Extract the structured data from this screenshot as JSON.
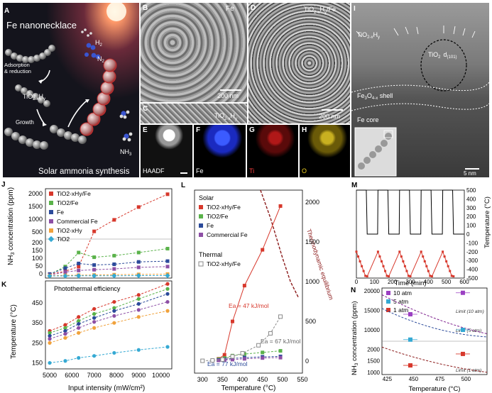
{
  "top": {
    "A": {
      "panel": "A",
      "title": "Fe nanonecklace",
      "adsorption": "Adsorption",
      "reduction": "& reduction",
      "tio2": "TiO",
      "tio2_sub": "2-x",
      "tio2_h": "H",
      "tio2_y": "y",
      "growth": "Growth",
      "h2": "H",
      "h2_sub": "2",
      "n2": "N",
      "n2_sub": "2",
      "nh3": "NH",
      "nh3_sub": "3",
      "footer": "Solar ammonia synthesis"
    },
    "B": {
      "panel": "B",
      "tag": "Fe",
      "scale": "200 nm"
    },
    "C": {
      "panel": "C",
      "tag_pre": "TiO",
      "tag_sub": "2-x",
      "tag_h": "H",
      "tag_y": "y"
    },
    "D": {
      "panel": "D",
      "tag": "TiO2-xHy/Fe",
      "tag_pre": "TiO",
      "tag_sub": "2-x",
      "tag_h": "H",
      "tag_y": "y",
      "tag_fe": "/Fe",
      "scale": "200 nm"
    },
    "E": {
      "panel": "E",
      "tag": "HAADF"
    },
    "F": {
      "panel": "F",
      "tag": "Fe"
    },
    "G": {
      "panel": "G",
      "tag": "Ti"
    },
    "H": {
      "panel": "H",
      "tag": "O"
    },
    "I": {
      "panel": "I",
      "tio2": "TiO",
      "tio2_sub": "2-x",
      "tio2_h": "H",
      "tio2_y": "y",
      "tio2_inner": "TiO",
      "tio2_inner_sub": "2",
      "d": "d",
      "d_sub": "(101)",
      "shell": "Fe",
      "shell_sub": "3",
      "shell_o": "O",
      "shell_o_sub": "4-x",
      "shell_word": " shell",
      "core": "Fe   core",
      "scale": "5 nm"
    }
  },
  "colors": {
    "red": "#d7382c",
    "green": "#5ab24a",
    "blue": "#2b4a9a",
    "purple": "#8d4fa5",
    "orange": "#f0a23c",
    "cyan": "#35a9d3",
    "gray": "#8a8a8a",
    "darkred": "#8b1a1a"
  },
  "J": {
    "panel": "J",
    "ylabel": "NH3 concentration (ppm)",
    "yticks_upper": [
      "2000",
      "1500",
      "1000",
      "500"
    ],
    "yticks_lower": [
      "200",
      "150",
      "100",
      "50",
      "0"
    ],
    "legend": [
      "TiO2-xHy/Fe",
      "TiO2/Fe",
      "Fe",
      "Commercial Fe",
      "TiO2-xHy",
      "TiO2"
    ]
  },
  "K": {
    "panel": "K",
    "title": "Photothermal efficiency",
    "ylabel": "Temperature (°C)",
    "xlabel": "Input intensity (mW/cm²)",
    "yticks": [
      "450",
      "350",
      "250",
      "150"
    ],
    "xticks": [
      "5000",
      "6000",
      "7000",
      "8000",
      "9000",
      "10000"
    ]
  },
  "L": {
    "panel": "L",
    "solar": "Solar",
    "thermal": "Thermal",
    "legend": [
      "TiO2-xHy/Fe",
      "TiO2/Fe",
      "Fe",
      "Commercial Fe"
    ],
    "legend_thermal": "TiO2-xHy/Fe",
    "eq1": "Ea = 47 kJ/mol",
    "eq2": "Ea = 67 kJ/mol",
    "eq3": "Ea = 77 kJ/mol",
    "equil": "Thermodynamic equilibrium",
    "xlabel": "Temperature (°C)",
    "xticks": [
      "300",
      "350",
      "400",
      "450",
      "500",
      "550"
    ],
    "yticks": [
      "2000",
      "1500",
      "1000",
      "500",
      "0"
    ]
  },
  "M": {
    "panel": "M",
    "xlabel": "Time (min)",
    "ylabel": "Temperature (°C)",
    "xticks": [
      "0",
      "100",
      "200",
      "300",
      "400",
      "500",
      "600"
    ],
    "yticks_right": [
      "500",
      "400",
      "300",
      "200",
      "100",
      "0",
      "-100",
      "-200",
      "-300",
      "-400",
      "-500"
    ],
    "yticks_left": [
      "3000",
      "2000",
      "1000",
      "0"
    ]
  },
  "N": {
    "panel": "N",
    "legend": [
      "10 atm",
      "5 atm",
      "1 atm"
    ],
    "limits": [
      "Limit (10 atm)",
      "Limit (5 atm)",
      "Limit (1 atm)"
    ],
    "ylabel": "NH3 concentration (ppm)",
    "xlabel": "Temperature (°C)",
    "xticks": [
      "425",
      "450",
      "475",
      "500"
    ],
    "yticks_upper": [
      "20000",
      "15000",
      "10000"
    ],
    "yticks_lower": [
      "2000",
      "1500",
      "1000"
    ]
  },
  "chart_data": [
    {
      "type": "line",
      "panel": "J",
      "x": [
        5000,
        5700,
        6300,
        7000,
        7900,
        9000,
        10300
      ],
      "series": [
        {
          "name": "TiO2-xHy/Fe",
          "values": [
            12,
            30,
            60,
            500,
            950,
            1450,
            1950
          ]
        },
        {
          "name": "TiO2/Fe",
          "values": [
            10,
            60,
            150,
            120,
            130,
            150,
            175
          ]
        },
        {
          "name": "Fe",
          "values": [
            12,
            50,
            80,
            70,
            75,
            90,
            95
          ]
        },
        {
          "name": "Commercial Fe",
          "values": [
            5,
            25,
            35,
            40,
            45,
            55,
            60
          ]
        },
        {
          "name": "TiO2-xHy",
          "values": [
            2,
            4,
            5,
            6,
            8,
            10,
            12
          ]
        },
        {
          "name": "TiO2",
          "values": [
            0,
            0,
            1,
            1,
            1,
            2,
            2
          ]
        }
      ]
    },
    {
      "type": "line",
      "panel": "K",
      "x": [
        5000,
        5700,
        6300,
        7000,
        7900,
        9000,
        10300
      ],
      "ylim": [
        120,
        560
      ],
      "series": [
        {
          "name": "TiO2-xHy/Fe",
          "values": [
            310,
            340,
            380,
            420,
            455,
            490,
            545
          ]
        },
        {
          "name": "TiO2/Fe",
          "values": [
            300,
            325,
            360,
            395,
            425,
            470,
            520
          ]
        },
        {
          "name": "Fe",
          "values": [
            285,
            310,
            345,
            375,
            410,
            445,
            495
          ]
        },
        {
          "name": "Commercial Fe",
          "values": [
            270,
            295,
            325,
            355,
            385,
            415,
            455
          ]
        },
        {
          "name": "TiO2-xHy",
          "values": [
            250,
            275,
            300,
            325,
            350,
            380,
            410
          ]
        },
        {
          "name": "TiO2",
          "values": [
            150,
            160,
            175,
            185,
            200,
            215,
            230
          ]
        }
      ]
    },
    {
      "type": "scatter",
      "panel": "L",
      "xlim": [
        280,
        550
      ],
      "ylim": [
        -150,
        2150
      ],
      "series": [
        {
          "name": "TiO2-xHy/Fe",
          "x": [
            340,
            355,
            375,
            405,
            450,
            495
          ],
          "values": [
            30,
            80,
            500,
            950,
            1400,
            1950
          ]
        },
        {
          "name": "TiO2/Fe",
          "x": [
            340,
            355,
            375,
            405,
            450,
            495
          ],
          "values": [
            25,
            40,
            70,
            90,
            110,
            130
          ]
        },
        {
          "name": "Fe",
          "x": [
            340,
            355,
            375,
            405,
            450,
            495
          ],
          "values": [
            15,
            25,
            35,
            45,
            55,
            60
          ]
        },
        {
          "name": "Commercial Fe",
          "x": [
            340,
            355,
            375,
            405,
            450,
            495
          ],
          "values": [
            10,
            15,
            20,
            30,
            40,
            45
          ]
        },
        {
          "name": "TiO2-xHy/Fe (thermal)",
          "x": [
            300,
            325,
            350,
            375,
            400,
            440,
            470,
            495
          ],
          "values": [
            5,
            10,
            20,
            60,
            100,
            200,
            350,
            560
          ]
        }
      ]
    },
    {
      "type": "line",
      "panel": "M",
      "xlim": [
        0,
        600
      ],
      "series": [
        {
          "name": "Temperature",
          "values": [
            500,
            0,
            500,
            0,
            500,
            0,
            500,
            0,
            500,
            0,
            500
          ]
        },
        {
          "name": "NH3",
          "values": [
            2000,
            200,
            2000,
            200,
            2000,
            200,
            2000,
            200,
            2000,
            200,
            2000
          ]
        }
      ]
    },
    {
      "type": "scatter",
      "panel": "N",
      "x": [
        447,
        497
      ],
      "series": [
        {
          "name": "10 atm",
          "values": [
            14000,
            19500
          ]
        },
        {
          "name": "5 atm",
          "values": [
            7500,
            10000
          ]
        },
        {
          "name": "1 atm",
          "values": [
            1300,
            1800
          ]
        }
      ]
    }
  ]
}
